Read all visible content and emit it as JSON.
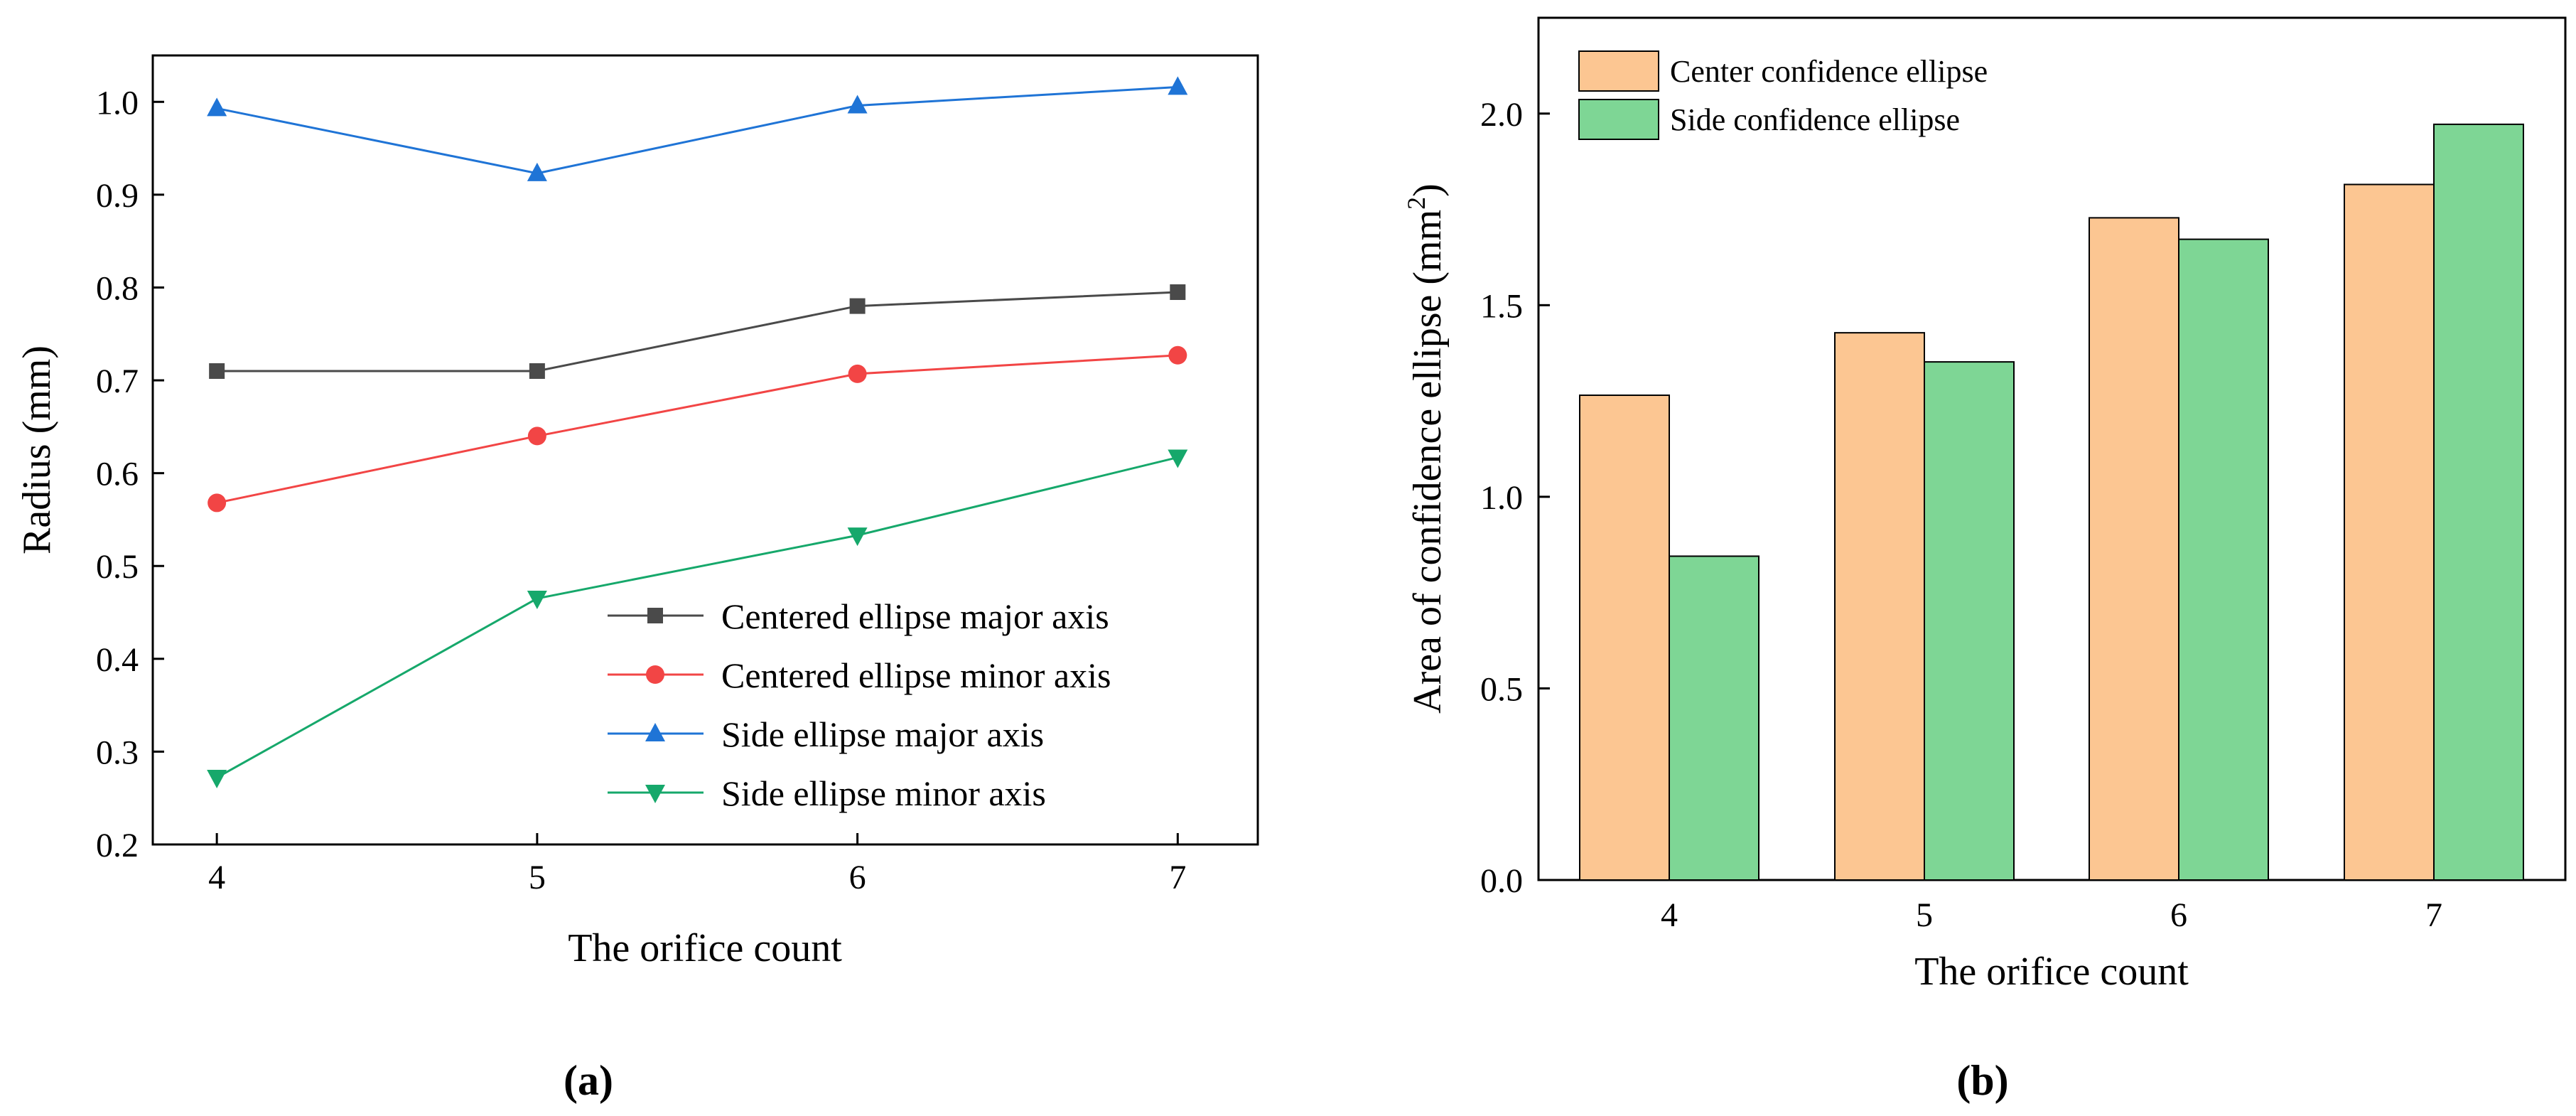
{
  "panels": [
    {
      "label": "(a)",
      "chart_data": {
        "type": "line",
        "xlabel": "The orifice count",
        "ylabel": "Radius (mm)",
        "x": [
          4,
          5,
          6,
          7
        ],
        "xticks": [
          4,
          5,
          6,
          7
        ],
        "xlim": [
          3.8,
          7.25
        ],
        "yticks": [
          0.2,
          0.3,
          0.4,
          0.5,
          0.6,
          0.7,
          0.8,
          0.9,
          1.0
        ],
        "ylim": [
          0.2,
          1.05
        ],
        "grid": false,
        "legend_position": "bottom-right",
        "series": [
          {
            "name": "Centered ellipse major axis",
            "color": "#4a4a4a",
            "marker": "square",
            "values": [
              0.71,
              0.71,
              0.78,
              0.795
            ]
          },
          {
            "name": "Centered ellipse minor axis",
            "color": "#f24545",
            "marker": "circle",
            "values": [
              0.568,
              0.64,
              0.707,
              0.727
            ]
          },
          {
            "name": "Side ellipse major axis",
            "color": "#1f74d6",
            "marker": "triangle-up",
            "values": [
              0.993,
              0.923,
              0.996,
              1.016
            ]
          },
          {
            "name": "Side ellipse minor axis",
            "color": "#16a86b",
            "marker": "triangle-down",
            "values": [
              0.272,
              0.465,
              0.533,
              0.617
            ]
          }
        ]
      }
    },
    {
      "label": "(b)",
      "chart_data": {
        "type": "bar",
        "xlabel": "The orifice count",
        "ylabel": "Area of confidence ellipse (mm",
        "ylabel_sup": "2",
        "ylabel_end": ")",
        "categories": [
          "4",
          "5",
          "6",
          "7"
        ],
        "yticks": [
          "0.0",
          "0.5",
          "1.0",
          "1.5",
          "2.0"
        ],
        "ylim": [
          0,
          2.25
        ],
        "grid": false,
        "legend_position": "top-left",
        "series": [
          {
            "name": "Center confidence ellipse",
            "color": "#fcc692",
            "values": [
              1.265,
              1.428,
              1.728,
              1.815
            ]
          },
          {
            "name": "Side confidence ellipse",
            "color": "#7ed695",
            "values": [
              0.845,
              1.352,
              1.672,
              1.972
            ]
          }
        ]
      }
    }
  ]
}
